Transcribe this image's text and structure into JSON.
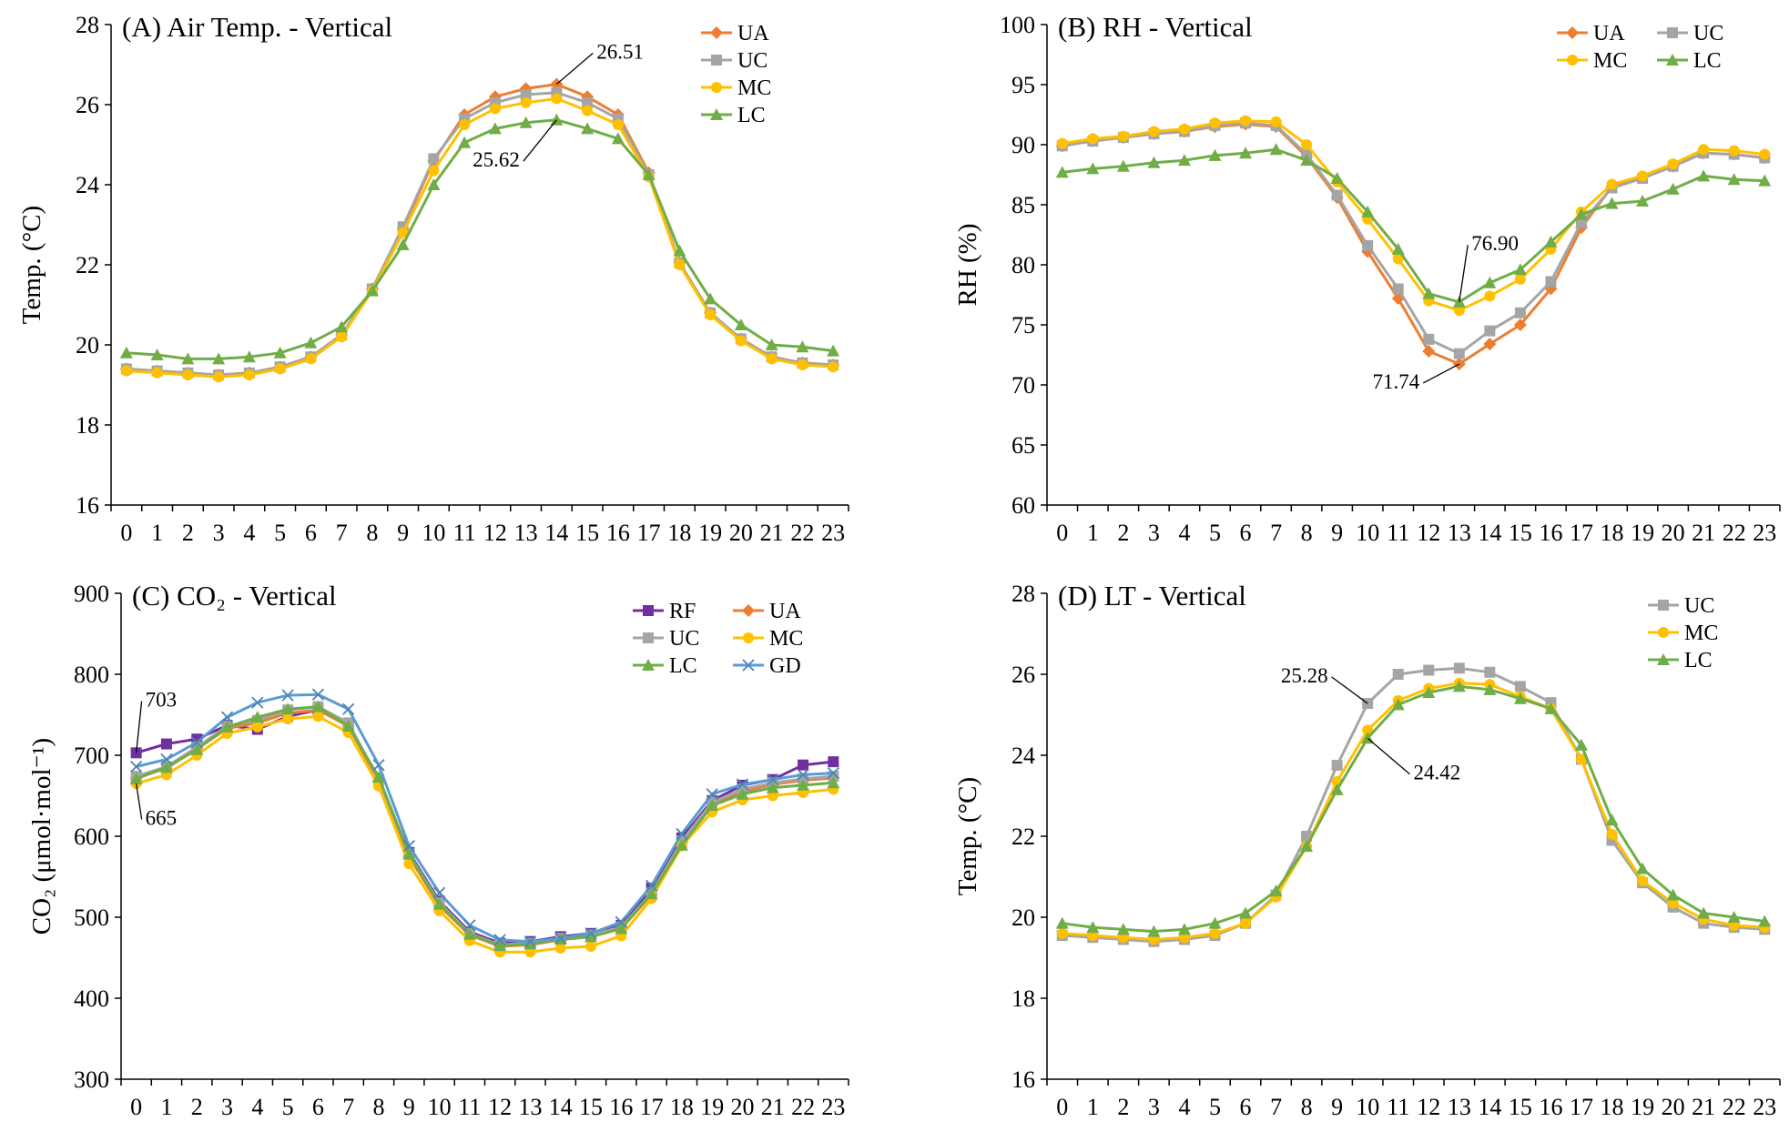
{
  "colors": {
    "RF": "#7030A0",
    "UA": "#ED7D31",
    "UC": "#A5A5A5",
    "MC": "#FFC000",
    "LC": "#70AD47",
    "GD": "#5B9BD5"
  },
  "chart_data": [
    {
      "id": "A",
      "type": "line",
      "title": "(A) Air Temp. - Vertical",
      "ylabel": "Temp. (°C)",
      "xlabel": "",
      "ylim": [
        16,
        28
      ],
      "yticks": [
        16,
        18,
        20,
        22,
        24,
        26,
        28
      ],
      "legend_cols": 1,
      "x": [
        0,
        1,
        2,
        3,
        4,
        5,
        6,
        7,
        8,
        9,
        10,
        11,
        12,
        13,
        14,
        15,
        16,
        17,
        18,
        19,
        20,
        21,
        22,
        23
      ],
      "series": [
        {
          "name": "UA",
          "marker": "diamond",
          "values": [
            19.4,
            19.35,
            19.3,
            19.25,
            19.3,
            19.45,
            19.7,
            20.25,
            21.4,
            22.9,
            24.6,
            25.75,
            26.2,
            26.4,
            26.51,
            26.2,
            25.75,
            24.3,
            22.05,
            20.8,
            20.15,
            19.7,
            19.55,
            19.5
          ]
        },
        {
          "name": "UC",
          "marker": "square",
          "values": [
            19.4,
            19.35,
            19.3,
            19.25,
            19.3,
            19.45,
            19.7,
            20.25,
            21.4,
            22.95,
            24.65,
            25.65,
            26.05,
            26.25,
            26.3,
            26.05,
            25.65,
            24.25,
            22.05,
            20.8,
            20.15,
            19.7,
            19.55,
            19.5
          ]
        },
        {
          "name": "MC",
          "marker": "circle",
          "values": [
            19.35,
            19.3,
            19.25,
            19.2,
            19.25,
            19.4,
            19.65,
            20.2,
            21.35,
            22.8,
            24.35,
            25.5,
            25.9,
            26.05,
            26.15,
            25.85,
            25.5,
            24.2,
            22.0,
            20.75,
            20.1,
            19.65,
            19.5,
            19.45
          ]
        },
        {
          "name": "LC",
          "marker": "triangle",
          "values": [
            19.8,
            19.75,
            19.65,
            19.65,
            19.7,
            19.8,
            20.05,
            20.45,
            21.35,
            22.5,
            24.0,
            25.05,
            25.4,
            25.55,
            25.62,
            25.4,
            25.15,
            24.25,
            22.35,
            21.15,
            20.5,
            20.0,
            19.95,
            19.85
          ]
        }
      ],
      "annotations": [
        {
          "text": "26.51",
          "x": 14,
          "y": 26.51,
          "lx": 15.3,
          "ly": 27.15
        },
        {
          "text": "25.62",
          "x": 14,
          "y": 25.62,
          "lx": 12.8,
          "ly": 24.45
        }
      ]
    },
    {
      "id": "B",
      "type": "line",
      "title": "(B) RH - Vertical",
      "ylabel": "RH (%)",
      "xlabel": "",
      "ylim": [
        60,
        100
      ],
      "yticks": [
        60,
        65,
        70,
        75,
        80,
        85,
        90,
        95,
        100
      ],
      "legend_cols": 2,
      "x": [
        0,
        1,
        2,
        3,
        4,
        5,
        6,
        7,
        8,
        9,
        10,
        11,
        12,
        13,
        14,
        15,
        16,
        17,
        18,
        19,
        20,
        21,
        22,
        23
      ],
      "series": [
        {
          "name": "UA",
          "marker": "diamond",
          "values": [
            89.9,
            90.3,
            90.6,
            90.9,
            91.1,
            91.5,
            91.7,
            91.5,
            89.0,
            85.6,
            81.1,
            77.2,
            72.8,
            71.74,
            73.4,
            75.0,
            78.0,
            83.1,
            86.5,
            87.3,
            88.2,
            89.3,
            89.2,
            88.9
          ]
        },
        {
          "name": "UC",
          "marker": "square",
          "values": [
            89.9,
            90.3,
            90.6,
            90.9,
            91.1,
            91.6,
            91.8,
            91.6,
            89.2,
            85.8,
            81.6,
            78.0,
            73.8,
            72.6,
            74.5,
            76.0,
            78.6,
            83.5,
            86.4,
            87.2,
            88.2,
            89.3,
            89.2,
            88.9
          ]
        },
        {
          "name": "MC",
          "marker": "circle",
          "values": [
            90.1,
            90.5,
            90.7,
            91.1,
            91.3,
            91.8,
            92.0,
            91.9,
            90.0,
            86.9,
            83.8,
            80.5,
            77.0,
            76.2,
            77.4,
            78.8,
            81.3,
            84.4,
            86.7,
            87.4,
            88.4,
            89.6,
            89.5,
            89.2
          ]
        },
        {
          "name": "LC",
          "marker": "triangle",
          "values": [
            87.7,
            88.0,
            88.2,
            88.5,
            88.7,
            89.1,
            89.3,
            89.6,
            88.7,
            87.2,
            84.4,
            81.3,
            77.6,
            76.9,
            78.5,
            79.6,
            81.9,
            84.2,
            85.1,
            85.3,
            86.3,
            87.4,
            87.1,
            87.0
          ]
        }
      ],
      "annotations": [
        {
          "text": "76.90",
          "x": 13,
          "y": 76.9,
          "lx": 13.4,
          "ly": 81.2
        },
        {
          "text": "71.74",
          "x": 13,
          "y": 71.74,
          "lx": 11.7,
          "ly": 69.7
        }
      ]
    },
    {
      "id": "C",
      "type": "line",
      "title": "(C) CO₂ - Vertical",
      "ylabel": "CO₂ (μmol·mol⁻¹)",
      "xlabel": "",
      "ylim": [
        300,
        900
      ],
      "yticks": [
        300,
        400,
        500,
        600,
        700,
        800,
        900
      ],
      "legend_cols": 2,
      "x": [
        0,
        1,
        2,
        3,
        4,
        5,
        6,
        7,
        8,
        9,
        10,
        11,
        12,
        13,
        14,
        15,
        16,
        17,
        18,
        19,
        20,
        21,
        22,
        23
      ],
      "series": [
        {
          "name": "RF",
          "marker": "square",
          "values": [
            703,
            714,
            720,
            737,
            732,
            748,
            756,
            738,
            670,
            580,
            520,
            482,
            468,
            470,
            476,
            480,
            490,
            536,
            598,
            644,
            663,
            670,
            688,
            692
          ]
        },
        {
          "name": "UA",
          "marker": "diamond",
          "values": [
            672,
            684,
            708,
            733,
            740,
            752,
            756,
            736,
            668,
            575,
            514,
            478,
            464,
            466,
            472,
            476,
            486,
            528,
            593,
            640,
            655,
            664,
            669,
            672
          ]
        },
        {
          "name": "UC",
          "marker": "square",
          "values": [
            674,
            686,
            710,
            736,
            743,
            756,
            760,
            740,
            670,
            578,
            518,
            480,
            466,
            468,
            474,
            478,
            488,
            530,
            594,
            642,
            658,
            666,
            671,
            674
          ]
        },
        {
          "name": "MC",
          "marker": "circle",
          "values": [
            665,
            676,
            700,
            727,
            735,
            745,
            748,
            728,
            662,
            566,
            508,
            471,
            457,
            457,
            462,
            464,
            477,
            523,
            588,
            630,
            645,
            650,
            654,
            658
          ]
        },
        {
          "name": "LC",
          "marker": "triangle",
          "values": [
            671,
            685,
            707,
            735,
            747,
            757,
            760,
            736,
            673,
            578,
            516,
            479,
            465,
            467,
            473,
            476,
            486,
            529,
            589,
            638,
            652,
            660,
            663,
            666
          ]
        },
        {
          "name": "GD",
          "marker": "x",
          "values": [
            686,
            695,
            716,
            747,
            765,
            774,
            775,
            757,
            688,
            588,
            530,
            490,
            472,
            470,
            474,
            480,
            494,
            539,
            603,
            652,
            664,
            670,
            676,
            678
          ]
        }
      ],
      "annotations": [
        {
          "text": "703",
          "x": 0,
          "y": 703,
          "lx": 0.3,
          "ly": 760
        },
        {
          "text": "665",
          "x": 0,
          "y": 665,
          "lx": 0.3,
          "ly": 614
        }
      ]
    },
    {
      "id": "D",
      "type": "line",
      "title": "(D) LT - Vertical",
      "ylabel": "Temp. (°C)",
      "xlabel": "",
      "ylim": [
        16,
        28
      ],
      "yticks": [
        16,
        18,
        20,
        22,
        24,
        26,
        28
      ],
      "legend_cols": 1,
      "x": [
        0,
        1,
        2,
        3,
        4,
        5,
        6,
        7,
        8,
        9,
        10,
        11,
        12,
        13,
        14,
        15,
        16,
        17,
        18,
        19,
        20,
        21,
        22,
        23
      ],
      "series": [
        {
          "name": "UC",
          "marker": "square",
          "values": [
            19.55,
            19.5,
            19.45,
            19.4,
            19.45,
            19.55,
            19.85,
            20.55,
            22.0,
            23.75,
            25.28,
            26.0,
            26.1,
            26.15,
            26.05,
            25.7,
            25.3,
            23.9,
            21.9,
            20.85,
            20.25,
            19.85,
            19.75,
            19.7
          ]
        },
        {
          "name": "MC",
          "marker": "circle",
          "values": [
            19.6,
            19.55,
            19.5,
            19.45,
            19.5,
            19.6,
            19.85,
            20.5,
            21.75,
            23.35,
            24.62,
            25.35,
            25.65,
            25.78,
            25.75,
            25.45,
            25.15,
            23.9,
            22.05,
            20.9,
            20.35,
            19.95,
            19.8,
            19.75
          ]
        },
        {
          "name": "LC",
          "marker": "triangle",
          "values": [
            19.85,
            19.75,
            19.7,
            19.65,
            19.7,
            19.85,
            20.1,
            20.65,
            21.75,
            23.15,
            24.42,
            25.25,
            25.55,
            25.7,
            25.62,
            25.4,
            25.15,
            24.25,
            22.4,
            21.2,
            20.55,
            20.1,
            20.0,
            19.9
          ]
        }
      ],
      "annotations": [
        {
          "text": "25.28",
          "x": 10,
          "y": 25.28,
          "lx": 8.7,
          "ly": 25.8
        },
        {
          "text": "24.42",
          "x": 10,
          "y": 24.42,
          "lx": 11.5,
          "ly": 23.4
        }
      ]
    }
  ]
}
